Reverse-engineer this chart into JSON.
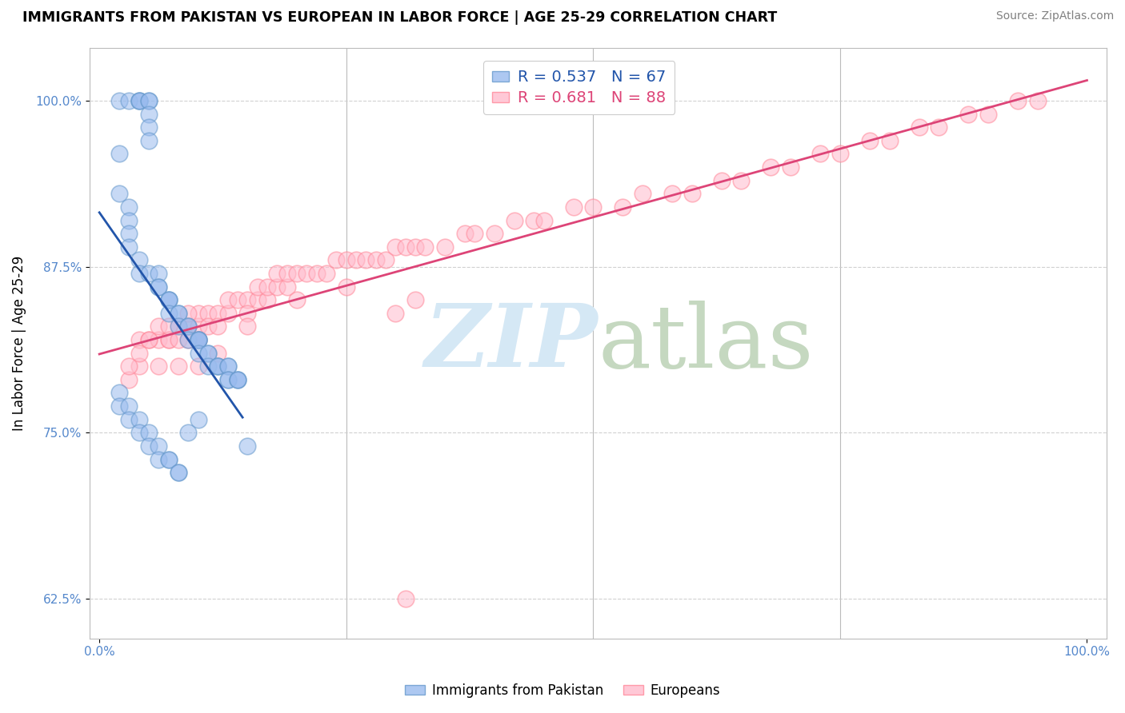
{
  "title": "IMMIGRANTS FROM PAKISTAN VS EUROPEAN IN LABOR FORCE | AGE 25-29 CORRELATION CHART",
  "source": "Source: ZipAtlas.com",
  "ylabel": "In Labor Force | Age 25-29",
  "xlim": [
    -0.01,
    1.02
  ],
  "ylim": [
    0.595,
    1.04
  ],
  "yticks": [
    0.625,
    0.75,
    0.875,
    1.0
  ],
  "ytick_labels": [
    "62.5%",
    "75.0%",
    "87.5%",
    "100.0%"
  ],
  "xtick_labels": [
    "0.0%",
    "100.0%"
  ],
  "xtick_pos": [
    0.0,
    1.0
  ],
  "blue_R": 0.537,
  "blue_N": 67,
  "pink_R": 0.681,
  "pink_N": 88,
  "blue_face_color": "#99BBEE",
  "blue_edge_color": "#6699CC",
  "pink_face_color": "#FFBBCC",
  "pink_edge_color": "#FF8899",
  "blue_line_color": "#2255AA",
  "pink_line_color": "#DD4477",
  "blue_label": "Immigrants from Pakistan",
  "pink_label": "Europeans",
  "tick_color": "#5588CC",
  "legend_R_color": "#5588CC",
  "legend_N_color": "#333333",
  "blue_x": [
    0.02,
    0.03,
    0.04,
    0.04,
    0.04,
    0.05,
    0.05,
    0.05,
    0.05,
    0.05,
    0.02,
    0.02,
    0.03,
    0.03,
    0.03,
    0.03,
    0.04,
    0.04,
    0.05,
    0.06,
    0.06,
    0.06,
    0.07,
    0.07,
    0.07,
    0.07,
    0.08,
    0.08,
    0.08,
    0.09,
    0.09,
    0.09,
    0.1,
    0.1,
    0.1,
    0.1,
    0.1,
    0.11,
    0.11,
    0.11,
    0.12,
    0.12,
    0.12,
    0.13,
    0.13,
    0.13,
    0.13,
    0.14,
    0.14,
    0.14,
    0.02,
    0.02,
    0.03,
    0.03,
    0.04,
    0.04,
    0.05,
    0.05,
    0.06,
    0.06,
    0.07,
    0.07,
    0.08,
    0.08,
    0.09,
    0.1,
    0.15
  ],
  "blue_y": [
    1.0,
    1.0,
    1.0,
    1.0,
    1.0,
    1.0,
    1.0,
    0.99,
    0.98,
    0.97,
    0.96,
    0.93,
    0.92,
    0.91,
    0.9,
    0.89,
    0.88,
    0.87,
    0.87,
    0.87,
    0.86,
    0.86,
    0.85,
    0.85,
    0.85,
    0.84,
    0.84,
    0.84,
    0.83,
    0.83,
    0.83,
    0.82,
    0.82,
    0.82,
    0.82,
    0.82,
    0.81,
    0.81,
    0.81,
    0.8,
    0.8,
    0.8,
    0.8,
    0.8,
    0.8,
    0.79,
    0.79,
    0.79,
    0.79,
    0.79,
    0.78,
    0.77,
    0.77,
    0.76,
    0.76,
    0.75,
    0.75,
    0.74,
    0.74,
    0.73,
    0.73,
    0.73,
    0.72,
    0.72,
    0.75,
    0.76,
    0.74
  ],
  "pink_x": [
    0.04,
    0.05,
    0.06,
    0.07,
    0.07,
    0.08,
    0.08,
    0.09,
    0.09,
    0.1,
    0.1,
    0.1,
    0.11,
    0.11,
    0.12,
    0.12,
    0.13,
    0.13,
    0.14,
    0.15,
    0.15,
    0.16,
    0.16,
    0.17,
    0.17,
    0.18,
    0.18,
    0.19,
    0.19,
    0.2,
    0.21,
    0.22,
    0.23,
    0.24,
    0.25,
    0.26,
    0.27,
    0.28,
    0.29,
    0.3,
    0.31,
    0.32,
    0.33,
    0.35,
    0.37,
    0.38,
    0.4,
    0.42,
    0.44,
    0.45,
    0.48,
    0.5,
    0.53,
    0.55,
    0.58,
    0.6,
    0.63,
    0.65,
    0.68,
    0.7,
    0.73,
    0.75,
    0.78,
    0.8,
    0.83,
    0.85,
    0.88,
    0.9,
    0.93,
    0.95,
    0.04,
    0.06,
    0.08,
    0.1,
    0.12,
    0.3,
    0.03,
    0.03,
    0.04,
    0.05,
    0.06,
    0.07,
    0.09,
    0.15,
    0.2,
    0.25,
    0.32,
    0.31
  ],
  "pink_y": [
    0.82,
    0.82,
    0.82,
    0.82,
    0.82,
    0.83,
    0.82,
    0.82,
    0.83,
    0.83,
    0.84,
    0.82,
    0.84,
    0.83,
    0.84,
    0.83,
    0.84,
    0.85,
    0.85,
    0.85,
    0.84,
    0.85,
    0.86,
    0.85,
    0.86,
    0.86,
    0.87,
    0.86,
    0.87,
    0.87,
    0.87,
    0.87,
    0.87,
    0.88,
    0.88,
    0.88,
    0.88,
    0.88,
    0.88,
    0.89,
    0.89,
    0.89,
    0.89,
    0.89,
    0.9,
    0.9,
    0.9,
    0.91,
    0.91,
    0.91,
    0.92,
    0.92,
    0.92,
    0.93,
    0.93,
    0.93,
    0.94,
    0.94,
    0.95,
    0.95,
    0.96,
    0.96,
    0.97,
    0.97,
    0.98,
    0.98,
    0.99,
    0.99,
    1.0,
    1.0,
    0.8,
    0.8,
    0.8,
    0.8,
    0.81,
    0.84,
    0.79,
    0.8,
    0.81,
    0.82,
    0.83,
    0.83,
    0.84,
    0.83,
    0.85,
    0.86,
    0.85,
    0.625
  ]
}
